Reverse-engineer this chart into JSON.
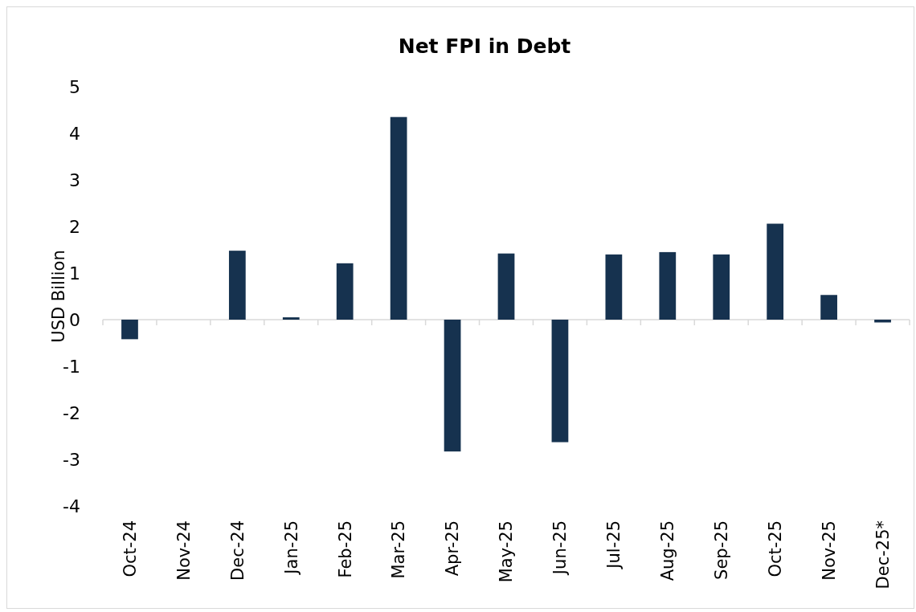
{
  "chart_data": {
    "type": "bar",
    "title": "Net FPI in Debt",
    "ylabel": "USD Billion",
    "categories": [
      "Oct-24",
      "Nov-24",
      "Dec-24",
      "Jan-25",
      "Feb-25",
      "Mar-25",
      "Apr-25",
      "May-25",
      "Jun-25",
      "Jul-25",
      "Aug-25",
      "Sep-25",
      "Oct-25",
      "Nov-25",
      "Dec-25*"
    ],
    "values": [
      -0.42,
      0,
      1.48,
      0.05,
      1.21,
      4.35,
      -2.83,
      1.42,
      -2.63,
      1.4,
      1.45,
      1.4,
      2.06,
      0.53,
      -0.06
    ],
    "color": "#16324f",
    "ylim": [
      -4,
      5
    ],
    "yticks": [
      -4,
      -3,
      -2,
      -1,
      0,
      1,
      2,
      3,
      4,
      5
    ]
  }
}
